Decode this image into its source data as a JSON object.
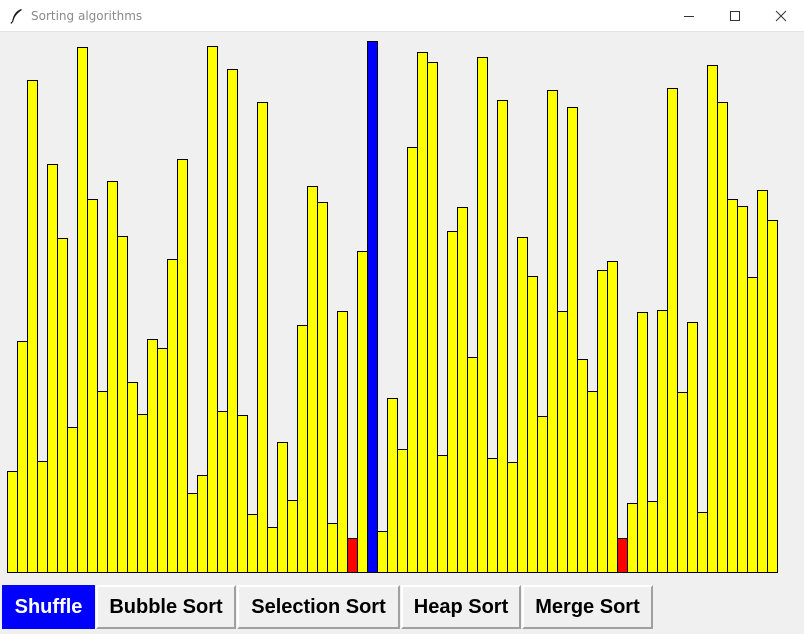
{
  "window": {
    "title": "Sorting algorithms",
    "icons": {
      "app": "feather-icon",
      "minimize": "minimize-icon",
      "maximize": "maximize-icon",
      "close": "close-icon"
    }
  },
  "chart_data": {
    "type": "bar",
    "values": [
      101,
      231,
      492,
      111,
      408,
      334,
      145,
      525,
      373,
      181,
      391,
      336,
      190,
      158,
      233,
      224,
      313,
      413,
      79,
      97,
      526,
      161,
      503,
      157,
      58,
      470,
      45,
      130,
      72,
      247,
      386,
      370,
      49,
      261,
      34,
      321,
      531,
      41,
      174,
      123,
      425,
      520,
      510,
      117,
      341,
      365,
      215,
      515,
      114,
      472,
      110,
      335,
      296,
      156,
      482,
      261,
      465,
      213,
      181,
      302,
      311,
      34,
      69,
      260,
      71,
      262,
      484,
      180,
      250,
      60,
      507,
      470,
      373,
      366,
      295,
      382,
      352
    ],
    "bar_colors": {
      "default": "#ffff00",
      "highlight": "#ff0000",
      "active": "#0000ff"
    },
    "highlight_indices": [
      34,
      61
    ],
    "active_indices": [
      36
    ],
    "ymax": 531
  },
  "buttons": [
    {
      "label": "Shuffle",
      "active": true
    },
    {
      "label": "Bubble Sort",
      "active": false
    },
    {
      "label": "Selection Sort",
      "active": false
    },
    {
      "label": "Heap Sort",
      "active": false
    },
    {
      "label": "Merge Sort",
      "active": false
    }
  ],
  "colors": {
    "active_button_bg": "#0000ff",
    "active_button_text": "#ffffff"
  }
}
